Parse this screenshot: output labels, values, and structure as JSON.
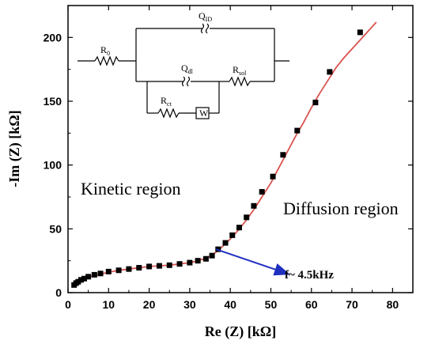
{
  "chart_data": {
    "type": "scatter",
    "xlabel": "Re (Z) [kΩ]",
    "ylabel": "-Im (Z) [kΩ]",
    "xlim": [
      0,
      85
    ],
    "ylim": [
      0,
      225
    ],
    "xticks": [
      "0",
      "10",
      "20",
      "30",
      "40",
      "50",
      "60",
      "70",
      "80"
    ],
    "yticks": [
      "0",
      "50",
      "100",
      "150",
      "200"
    ],
    "series": [
      {
        "kind": "markers",
        "marker": "square",
        "color": "#000000",
        "points": [
          [
            1.5,
            6
          ],
          [
            2,
            7.5
          ],
          [
            2.5,
            8.5
          ],
          [
            3.2,
            10
          ],
          [
            4,
            11
          ],
          [
            5,
            12.5
          ],
          [
            6.5,
            14
          ],
          [
            8,
            15
          ],
          [
            10,
            16.5
          ],
          [
            12.5,
            17.5
          ],
          [
            15,
            18.5
          ],
          [
            17.5,
            19.5
          ],
          [
            20,
            20.5
          ],
          [
            22.5,
            21
          ],
          [
            25,
            21.5
          ],
          [
            27.5,
            22.5
          ],
          [
            30,
            23.5
          ],
          [
            32,
            25
          ],
          [
            34,
            26.5
          ],
          [
            35.5,
            29
          ],
          [
            37,
            34
          ],
          [
            38.8,
            39
          ],
          [
            40.5,
            45
          ],
          [
            42.2,
            51
          ],
          [
            44,
            59
          ],
          [
            45.8,
            68
          ],
          [
            47.8,
            79
          ],
          [
            50.5,
            91
          ],
          [
            53,
            108
          ],
          [
            56.5,
            127
          ],
          [
            61,
            149
          ],
          [
            64.5,
            173
          ],
          [
            72,
            204
          ]
        ]
      },
      {
        "kind": "fit-line",
        "color": "#d9534f",
        "points": [
          [
            1.2,
            5
          ],
          [
            2,
            7.5
          ],
          [
            3,
            9.5
          ],
          [
            4,
            11
          ],
          [
            6,
            13
          ],
          [
            8,
            14.5
          ],
          [
            10,
            16
          ],
          [
            12.5,
            17.5
          ],
          [
            15,
            18.5
          ],
          [
            17.5,
            19.5
          ],
          [
            20,
            20.5
          ],
          [
            22.5,
            21
          ],
          [
            25,
            21.5
          ],
          [
            27.5,
            22.5
          ],
          [
            30,
            23.5
          ],
          [
            32,
            25
          ],
          [
            34,
            27
          ],
          [
            35.5,
            29.5
          ],
          [
            37,
            33
          ],
          [
            38.5,
            37.5
          ],
          [
            40,
            42
          ],
          [
            42,
            49
          ],
          [
            44,
            57
          ],
          [
            46,
            66
          ],
          [
            48,
            76
          ],
          [
            50,
            86
          ],
          [
            52,
            98
          ],
          [
            54,
            110
          ],
          [
            56,
            122
          ],
          [
            58,
            133
          ],
          [
            60,
            145
          ],
          [
            62,
            156
          ],
          [
            64,
            166
          ],
          [
            66,
            176
          ],
          [
            68,
            184
          ],
          [
            72,
            198
          ],
          [
            76,
            212
          ]
        ]
      }
    ],
    "annotations": {
      "kinetic": "Kinetic region",
      "diffusion": "Diffusion region",
      "frequency": "f~ 4.5kHz",
      "arrow_from": [
        36.5,
        34
      ],
      "arrow_to": [
        54,
        15
      ],
      "arrow_color": "#1f2fbf"
    },
    "inset_circuit": {
      "r0": "R",
      "r0_sub": "0",
      "q_id": "Q",
      "q_id_sub": "ID",
      "q_dl": "Q",
      "q_dl_sub": "dl",
      "r_ct": "R",
      "r_ct_sub": "ct",
      "r_sol": "R",
      "r_sol_sub": "sol",
      "warburg": "W"
    }
  }
}
